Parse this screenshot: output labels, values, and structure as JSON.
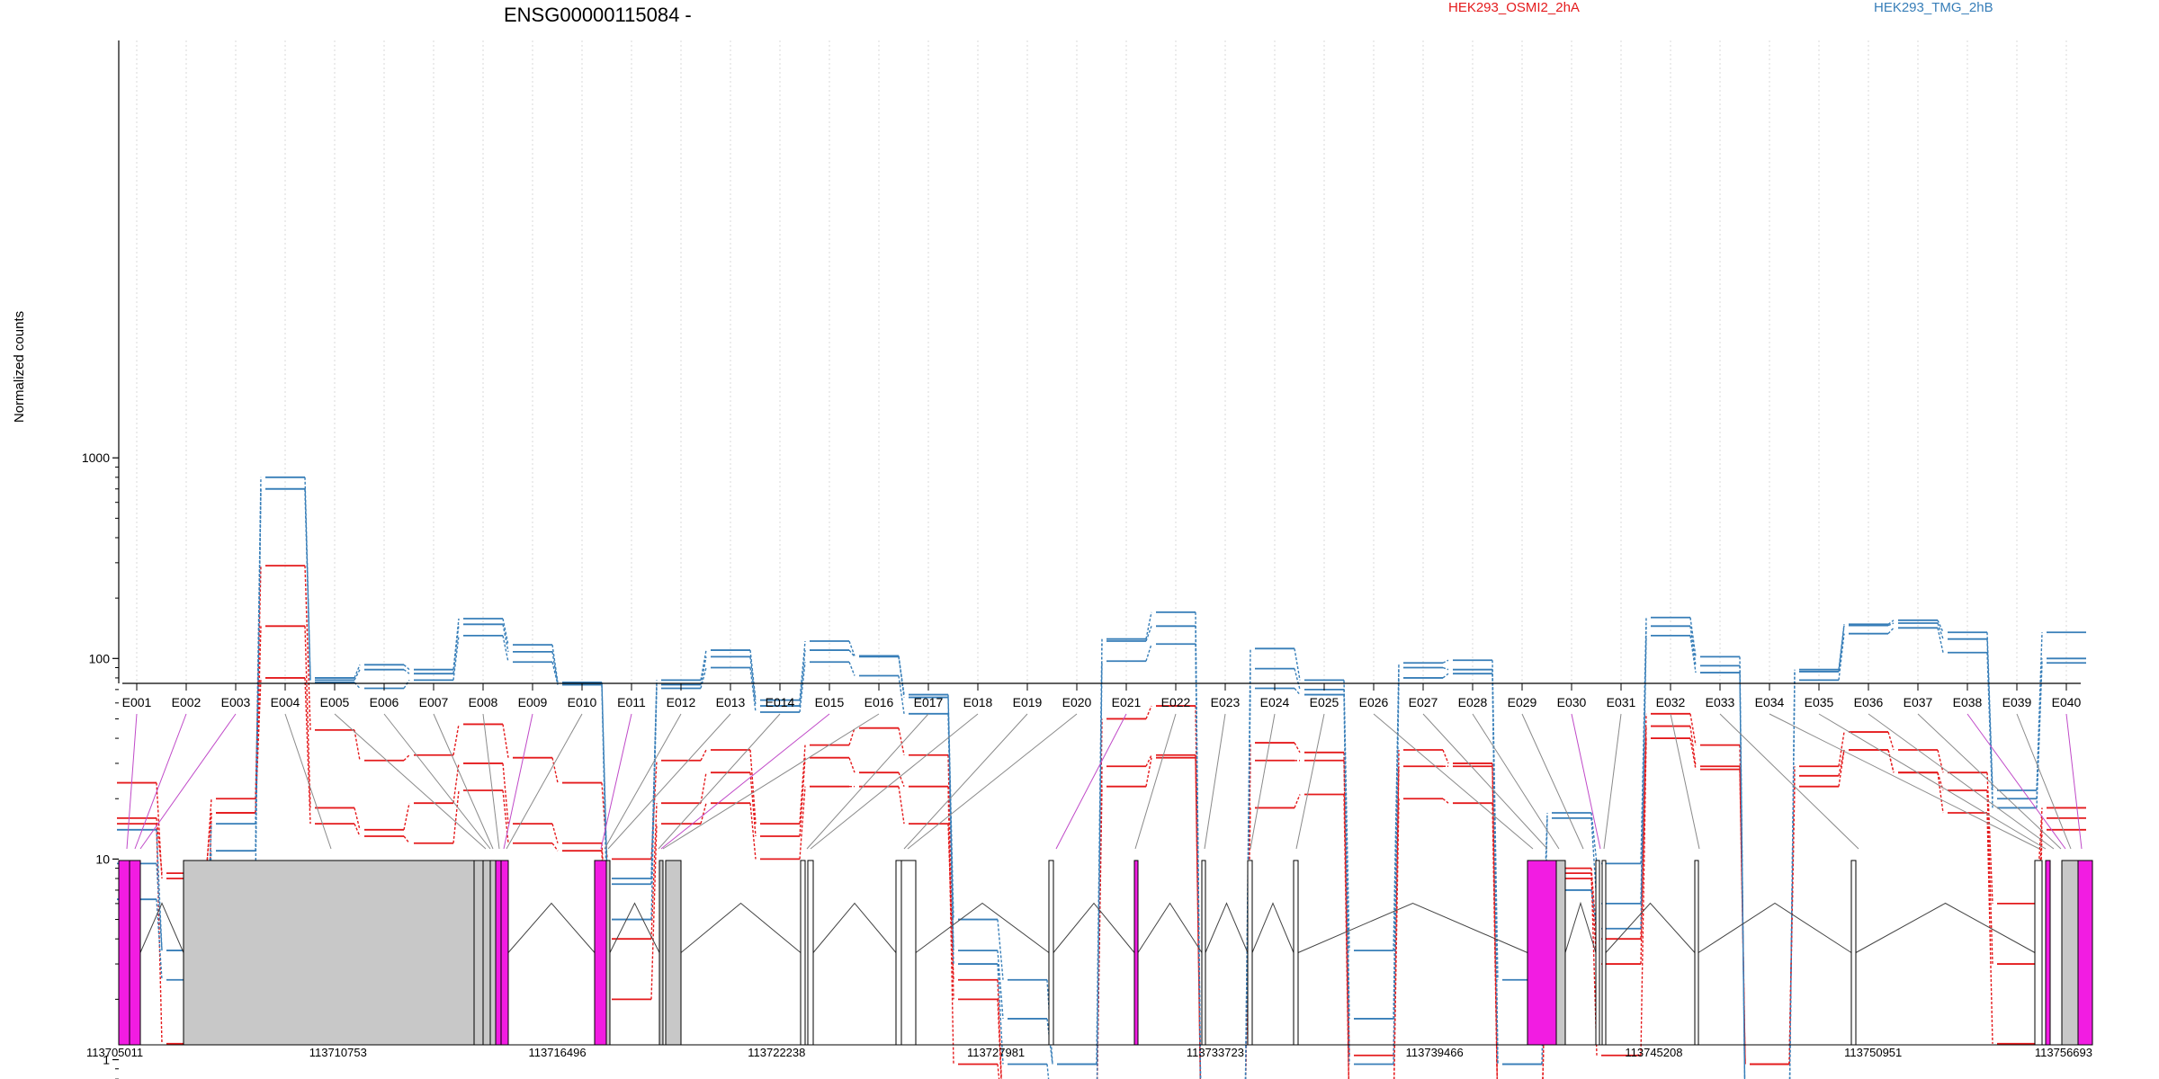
{
  "chart_data": {
    "type": "line",
    "title": "ENSG00000115084 -",
    "ylabel": "Normalized counts",
    "y_scale": "log",
    "ylim": [
      0.45,
      1000
    ],
    "y_ticks": [
      1,
      10,
      100,
      1000
    ],
    "y_tick_labels": [
      "1",
      "10",
      "100",
      "1000"
    ],
    "grid": "vertical dotted gridlines at each exon",
    "legend_placement": "top",
    "categories": [
      "E001",
      "E002",
      "E003",
      "E004",
      "E005",
      "E006",
      "E007",
      "E008",
      "E009",
      "E010",
      "E011",
      "E012",
      "E013",
      "E014",
      "E015",
      "E016",
      "E017",
      "E018",
      "E019",
      "E020",
      "E021",
      "E022",
      "E023",
      "E024",
      "E025",
      "E026",
      "E027",
      "E028",
      "E029",
      "E030",
      "E031",
      "E032",
      "E033",
      "E034",
      "E035",
      "E036",
      "E037",
      "E038",
      "E039",
      "E040"
    ],
    "legend": [
      {
        "label": "HEK293_OSMI2_2hA",
        "color": "#e41a1c"
      },
      {
        "label": "HEK293_TMG_2hB",
        "color": "#377eb8"
      }
    ],
    "series": [
      {
        "group": "HEK293_OSMI2_2hA",
        "color": "#e41a1c",
        "values": [
          24,
          8,
          20,
          290,
          44,
          31,
          33,
          47,
          32,
          24,
          10,
          31,
          35,
          15,
          37,
          45,
          33,
          2,
          0.5,
          0.5,
          50,
          58,
          0.5,
          38,
          34,
          0.5,
          35,
          30,
          0.5,
          9,
          4,
          53,
          37,
          0.95,
          29,
          43,
          35,
          27,
          6,
          18
        ]
      },
      {
        "group": "HEK293_OSMI2_2hA",
        "color": "#e41a1c",
        "values": [
          16,
          8.5,
          17,
          145,
          18,
          14,
          19,
          30,
          15,
          12,
          4,
          19,
          27,
          13,
          32,
          27,
          23,
          0.95,
          0.5,
          0.5,
          29,
          33,
          0.5,
          31,
          31,
          1.05,
          29,
          29,
          0.5,
          8,
          3,
          46,
          29,
          0.95,
          26,
          35,
          27,
          22,
          3,
          16
        ]
      },
      {
        "group": "HEK293_OSMI2_2hA",
        "color": "#e41a1c",
        "values": [
          15,
          1.2,
          17,
          80,
          15,
          13,
          12,
          22,
          12,
          11,
          2,
          15,
          19,
          10,
          23,
          23,
          15,
          2.5,
          0.5,
          0.5,
          23,
          32,
          0.5,
          18,
          21,
          0.5,
          20,
          19,
          0.5,
          8.5,
          1.05,
          40,
          28,
          0.95,
          23,
          35,
          27,
          17,
          1.2,
          14
        ]
      },
      {
        "group": "HEK293_TMG_2hB",
        "color": "#377eb8",
        "values": [
          14,
          3.5,
          15,
          800,
          80,
          93,
          88,
          158,
          117,
          76,
          8,
          78,
          110,
          62,
          122,
          103,
          66,
          5,
          2.5,
          0.95,
          125,
          170,
          0.5,
          112,
          78,
          3.5,
          95,
          98,
          2.5,
          17,
          9.5,
          160,
          102,
          0.5,
          88,
          148,
          155,
          135,
          22,
          135
        ]
      },
      {
        "group": "HEK293_TMG_2hB",
        "color": "#377eb8",
        "values": [
          9.5,
          3.5,
          11,
          700,
          78,
          88,
          84,
          148,
          108,
          74,
          7.5,
          74,
          102,
          58,
          110,
          102,
          64,
          3.5,
          1.6,
          0.95,
          122,
          145,
          0.5,
          89,
          70,
          1.6,
          90,
          88,
          0.95,
          16,
          6,
          145,
          92,
          0.5,
          86,
          146,
          150,
          125,
          20,
          100
        ]
      },
      {
        "group": "HEK293_TMG_2hB",
        "color": "#377eb8",
        "values": [
          6.3,
          2.5,
          8,
          700,
          76,
          71,
          78,
          130,
          96,
          74,
          5,
          71,
          90,
          54,
          96,
          82,
          53,
          3,
          0.95,
          0.5,
          97,
          118,
          0.5,
          71,
          66,
          0.95,
          80,
          84,
          0.95,
          7,
          4.5,
          130,
          85,
          0.5,
          78,
          133,
          142,
          107,
          18,
          95
        ]
      }
    ],
    "gene_model": {
      "coordinate_labels": [
        "113705011",
        "113710753",
        "113716496",
        "113722238",
        "113727981",
        "113733723",
        "113739466",
        "113745208",
        "113750951",
        "113756693"
      ]
    }
  }
}
